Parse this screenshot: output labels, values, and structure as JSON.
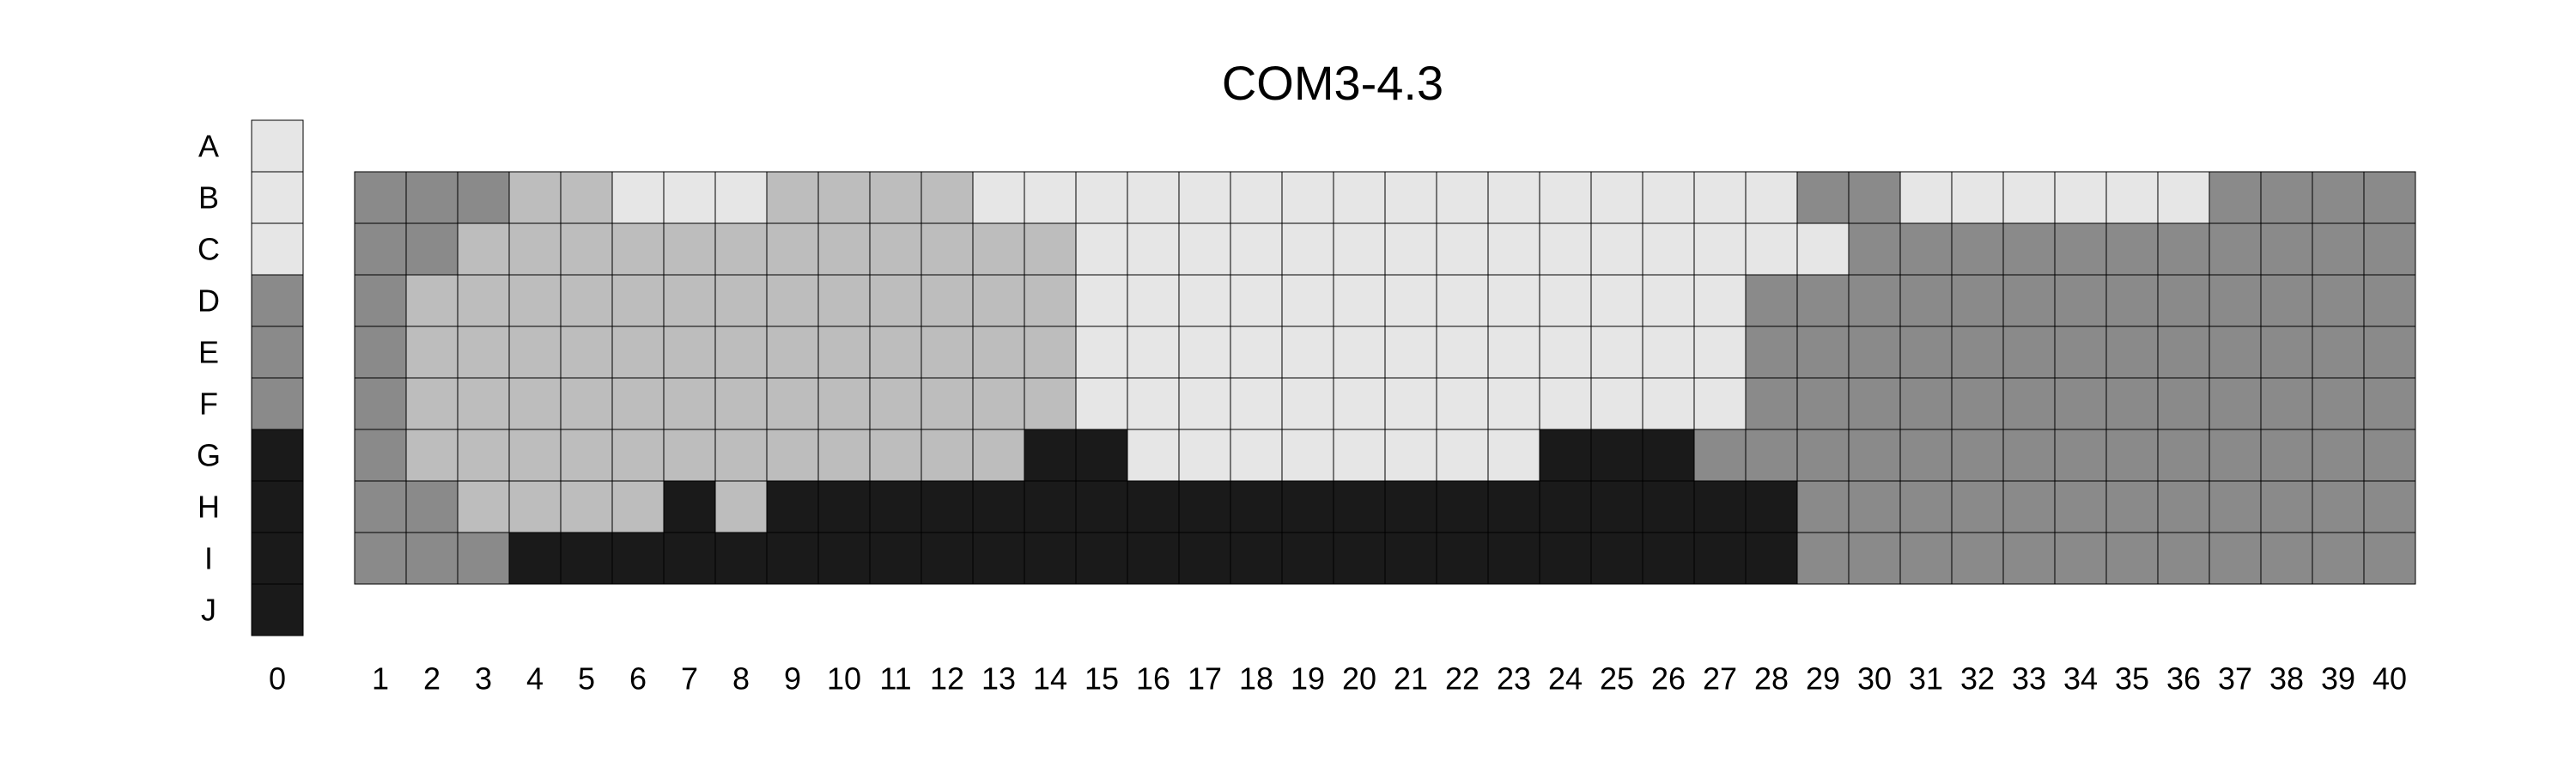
{
  "chart_data": {
    "type": "heatmap",
    "title": "COM3-4.3",
    "rows": [
      "A",
      "B",
      "C",
      "D",
      "E",
      "F",
      "G",
      "H",
      "I",
      "J"
    ],
    "reference_column": {
      "label": "0",
      "values": [
        0,
        0,
        0,
        2,
        2,
        2,
        3,
        3,
        3,
        3
      ]
    },
    "columns": [
      "1",
      "2",
      "3",
      "4",
      "5",
      "6",
      "7",
      "8",
      "9",
      "10",
      "11",
      "12",
      "13",
      "14",
      "15",
      "16",
      "17",
      "18",
      "19",
      "20",
      "21",
      "22",
      "23",
      "24",
      "25",
      "26",
      "27",
      "28",
      "29",
      "30",
      "31",
      "32",
      "33",
      "34",
      "35",
      "36",
      "37",
      "38",
      "39",
      "40"
    ],
    "grid_rows": [
      "B",
      "C",
      "D",
      "E",
      "F",
      "G",
      "H",
      "I"
    ],
    "grid": [
      [
        2,
        2,
        2,
        1,
        1,
        0,
        0,
        0,
        1,
        1,
        1,
        1,
        0,
        0,
        0,
        0,
        0,
        0,
        0,
        0,
        0,
        0,
        0,
        0,
        0,
        0,
        0,
        0,
        2,
        2,
        0,
        0,
        0,
        0,
        0,
        0,
        2,
        2,
        2,
        2
      ],
      [
        2,
        2,
        1,
        1,
        1,
        1,
        1,
        1,
        1,
        1,
        1,
        1,
        1,
        1,
        0,
        0,
        0,
        0,
        0,
        0,
        0,
        0,
        0,
        0,
        0,
        0,
        0,
        0,
        0,
        2,
        2,
        2,
        2,
        2,
        2,
        2,
        2,
        2,
        2,
        2
      ],
      [
        2,
        1,
        1,
        1,
        1,
        1,
        1,
        1,
        1,
        1,
        1,
        1,
        1,
        1,
        0,
        0,
        0,
        0,
        0,
        0,
        0,
        0,
        0,
        0,
        0,
        0,
        0,
        2,
        2,
        2,
        2,
        2,
        2,
        2,
        2,
        2,
        2,
        2,
        2,
        2
      ],
      [
        2,
        1,
        1,
        1,
        1,
        1,
        1,
        1,
        1,
        1,
        1,
        1,
        1,
        1,
        0,
        0,
        0,
        0,
        0,
        0,
        0,
        0,
        0,
        0,
        0,
        0,
        0,
        2,
        2,
        2,
        2,
        2,
        2,
        2,
        2,
        2,
        2,
        2,
        2,
        2
      ],
      [
        2,
        1,
        1,
        1,
        1,
        1,
        1,
        1,
        1,
        1,
        1,
        1,
        1,
        1,
        0,
        0,
        0,
        0,
        0,
        0,
        0,
        0,
        0,
        0,
        0,
        0,
        0,
        2,
        2,
        2,
        2,
        2,
        2,
        2,
        2,
        2,
        2,
        2,
        2,
        2
      ],
      [
        2,
        1,
        1,
        1,
        1,
        1,
        1,
        1,
        1,
        1,
        1,
        1,
        1,
        3,
        3,
        0,
        0,
        0,
        0,
        0,
        0,
        0,
        0,
        3,
        3,
        3,
        2,
        2,
        2,
        2,
        2,
        2,
        2,
        2,
        2,
        2,
        2,
        2,
        2,
        2
      ],
      [
        2,
        2,
        1,
        1,
        1,
        1,
        3,
        1,
        3,
        3,
        3,
        3,
        3,
        3,
        3,
        3,
        3,
        3,
        3,
        3,
        3,
        3,
        3,
        3,
        3,
        3,
        3,
        3,
        2,
        2,
        2,
        2,
        2,
        2,
        2,
        2,
        2,
        2,
        2,
        2
      ],
      [
        2,
        2,
        2,
        3,
        3,
        3,
        3,
        3,
        3,
        3,
        3,
        3,
        3,
        3,
        3,
        3,
        3,
        3,
        3,
        3,
        3,
        3,
        3,
        3,
        3,
        3,
        3,
        3,
        2,
        2,
        2,
        2,
        2,
        2,
        2,
        2,
        2,
        2,
        2,
        2
      ]
    ],
    "colors": [
      "#e6e6e6",
      "#bdbdbd",
      "#8a8a8a",
      "#1a1a1a"
    ],
    "legend": "none",
    "grid_lines": true
  }
}
